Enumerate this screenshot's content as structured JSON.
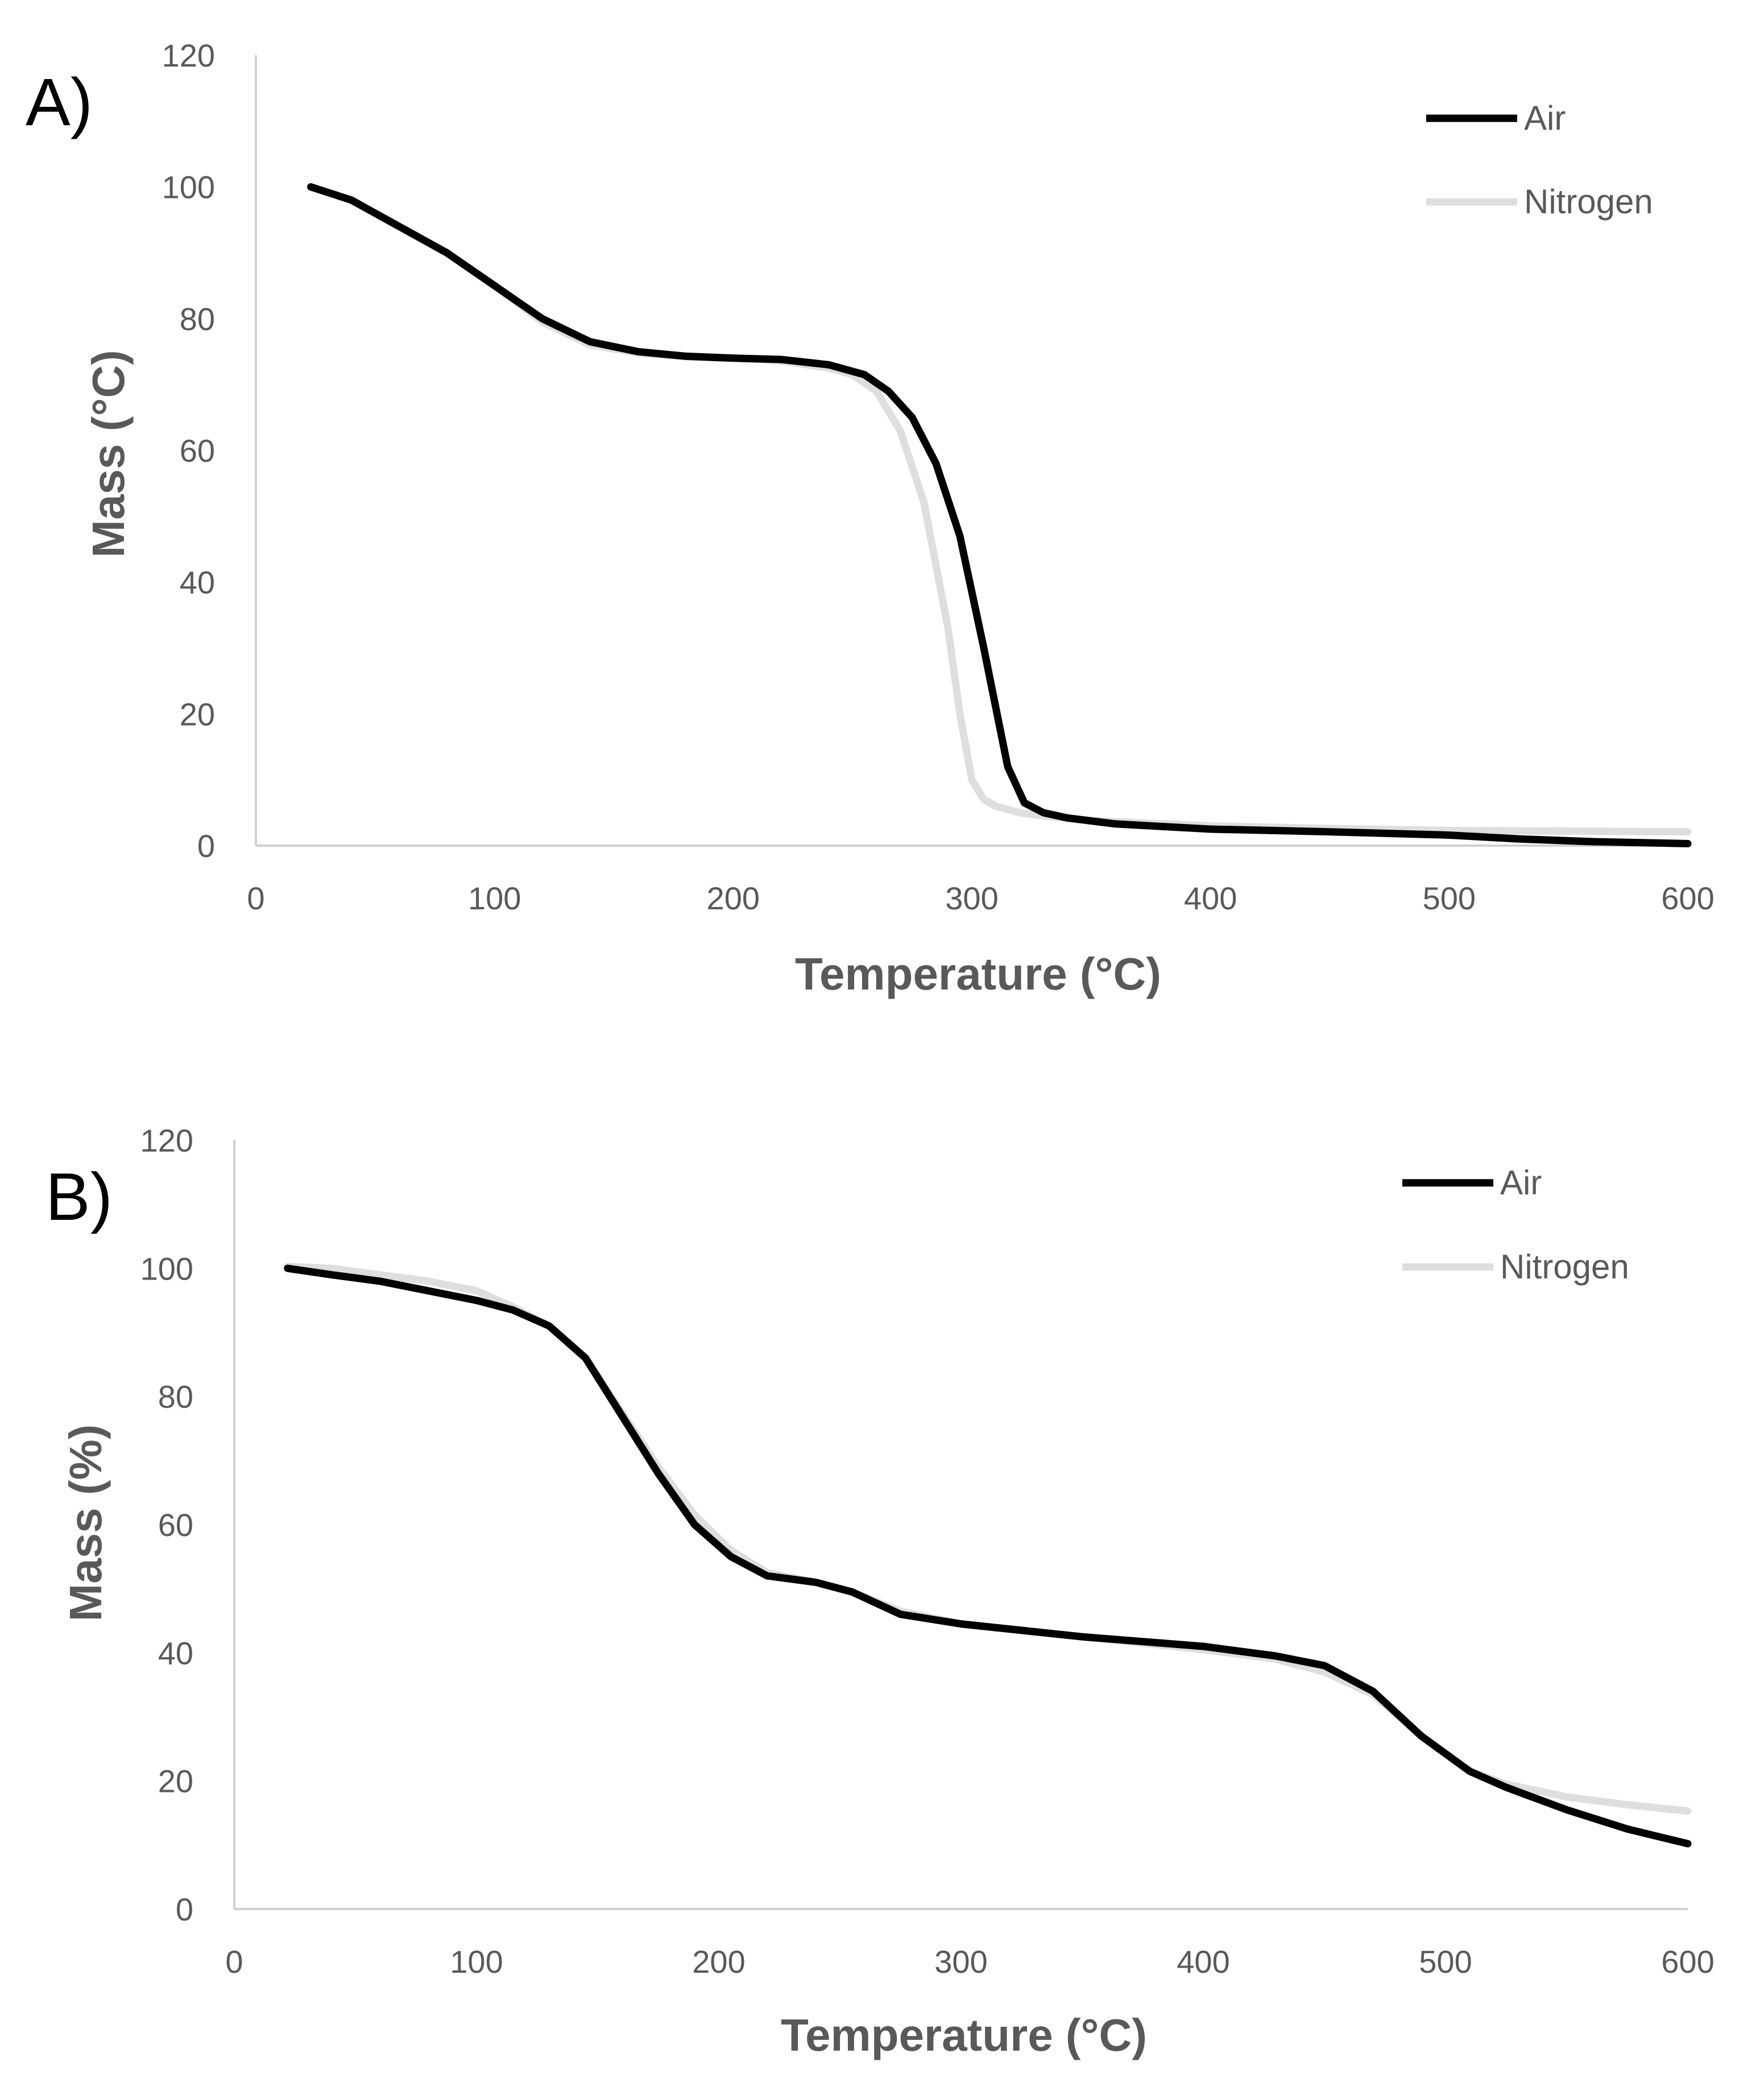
{
  "chart_data": [
    {
      "panel_label": "A)",
      "type": "line",
      "xlabel": "Temperature (°C)",
      "ylabel": "Mass (°C)",
      "xlim": [
        0,
        600
      ],
      "ylim": [
        0,
        120
      ],
      "x_ticks": [
        0,
        100,
        200,
        300,
        400,
        500,
        600
      ],
      "y_ticks": [
        0,
        20,
        40,
        60,
        80,
        100,
        120
      ],
      "grid": false,
      "legend_position": "top-right",
      "series": [
        {
          "name": "Air",
          "color": "#000000",
          "x": [
            23,
            40,
            60,
            80,
            100,
            120,
            140,
            160,
            180,
            200,
            220,
            240,
            255,
            265,
            275,
            285,
            295,
            305,
            315,
            322,
            330,
            340,
            360,
            400,
            450,
            500,
            530,
            560,
            600
          ],
          "y": [
            100,
            98,
            94,
            90,
            85,
            80,
            76.5,
            75,
            74.3,
            74,
            73.8,
            73,
            71.5,
            69,
            65,
            58,
            47,
            30,
            12,
            6.5,
            5,
            4.2,
            3.3,
            2.5,
            2.1,
            1.6,
            1,
            0.6,
            0.3
          ]
        },
        {
          "name": "Nitrogen",
          "color": "#dedede",
          "x": [
            23,
            40,
            60,
            80,
            100,
            120,
            140,
            160,
            180,
            200,
            220,
            240,
            250,
            260,
            270,
            280,
            290,
            295,
            300,
            305,
            310,
            320,
            330,
            350,
            400,
            450,
            500,
            550,
            600
          ],
          "y": [
            100,
            98,
            94,
            90,
            85,
            79.5,
            76,
            74.8,
            74.2,
            74,
            73.6,
            72.5,
            71.5,
            69,
            63,
            52,
            33,
            20,
            10,
            7,
            6,
            5,
            4.5,
            3.8,
            3,
            2.6,
            2.3,
            2.2,
            2.1
          ]
        }
      ]
    },
    {
      "panel_label": "B)",
      "type": "line",
      "xlabel": "Temperature (°C)",
      "ylabel": "Mass (%)",
      "xlim": [
        0,
        600
      ],
      "ylim": [
        0,
        120
      ],
      "x_ticks": [
        0,
        100,
        200,
        300,
        400,
        500,
        600
      ],
      "y_ticks": [
        0,
        20,
        40,
        60,
        80,
        100,
        120
      ],
      "grid": false,
      "legend_position": "top-right",
      "series": [
        {
          "name": "Air",
          "color": "#000000",
          "x": [
            22,
            40,
            60,
            80,
            100,
            115,
            130,
            145,
            160,
            175,
            190,
            205,
            220,
            240,
            255,
            275,
            300,
            350,
            400,
            430,
            450,
            470,
            490,
            510,
            525,
            550,
            575,
            600
          ],
          "y": [
            100,
            99,
            98,
            96.5,
            95,
            93.5,
            91,
            86,
            77,
            68,
            60,
            55,
            52,
            51,
            49.5,
            46,
            44.5,
            42.5,
            41,
            39.5,
            38,
            34,
            27,
            21.5,
            19,
            15.5,
            12.5,
            10.2
          ]
        },
        {
          "name": "Nitrogen",
          "color": "#dedede",
          "x": [
            22,
            40,
            60,
            80,
            100,
            115,
            130,
            145,
            160,
            175,
            190,
            205,
            220,
            240,
            255,
            275,
            300,
            350,
            400,
            430,
            450,
            470,
            490,
            510,
            525,
            550,
            575,
            600
          ],
          "y": [
            100.3,
            100,
            99,
            98,
            96.5,
            94,
            91,
            86,
            77.5,
            69,
            61.5,
            56,
            52.5,
            51,
            49.5,
            46.5,
            44.5,
            42.5,
            40.5,
            39,
            37,
            33.5,
            27,
            21.5,
            19.5,
            17.5,
            16.3,
            15.3
          ]
        }
      ]
    }
  ]
}
